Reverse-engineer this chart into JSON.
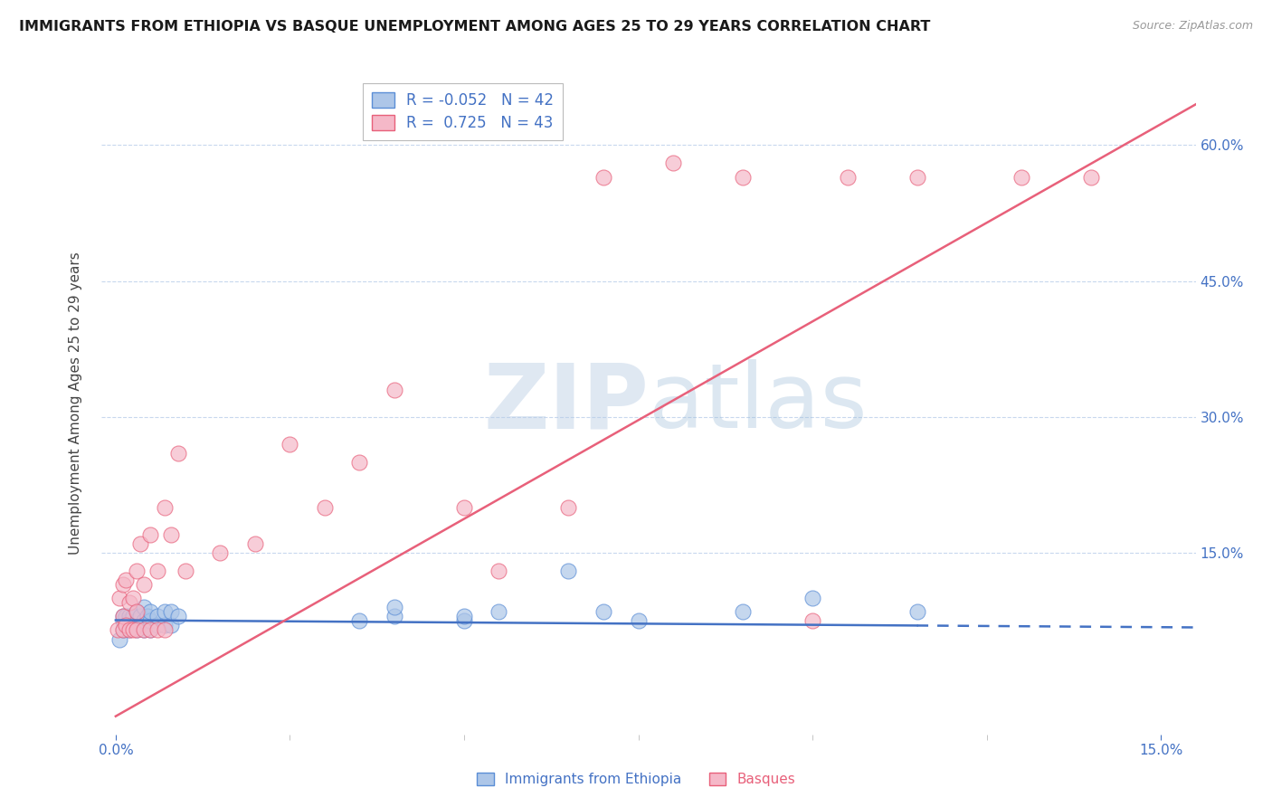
{
  "title": "IMMIGRANTS FROM ETHIOPIA VS BASQUE UNEMPLOYMENT AMONG AGES 25 TO 29 YEARS CORRELATION CHART",
  "source": "Source: ZipAtlas.com",
  "ylabel": "Unemployment Among Ages 25 to 29 years",
  "xlim": [
    -0.002,
    0.155
  ],
  "ylim": [
    -0.05,
    0.68
  ],
  "yticks_right": [
    0.15,
    0.3,
    0.45,
    0.6
  ],
  "ytick_labels_right": [
    "15.0%",
    "30.0%",
    "45.0%",
    "60.0%"
  ],
  "xticks": [
    0.0,
    0.15
  ],
  "xtick_labels": [
    "0.0%",
    "15.0%"
  ],
  "legend_blue_r": "-0.052",
  "legend_blue_n": "42",
  "legend_pink_r": "0.725",
  "legend_pink_n": "43",
  "blue_scatter_color": "#adc6e8",
  "pink_scatter_color": "#f5b8c8",
  "blue_edge_color": "#5b8ed6",
  "pink_edge_color": "#e8607a",
  "blue_line_color": "#4472c4",
  "pink_line_color": "#e8607a",
  "axis_color": "#4472c4",
  "grid_color": "#c8d8ee",
  "watermark_color": "#c8ddf5",
  "blue_x": [
    0.0005,
    0.001,
    0.001,
    0.001,
    0.0015,
    0.0015,
    0.002,
    0.002,
    0.002,
    0.0025,
    0.0025,
    0.003,
    0.003,
    0.003,
    0.0035,
    0.0035,
    0.004,
    0.004,
    0.004,
    0.0045,
    0.005,
    0.005,
    0.005,
    0.006,
    0.006,
    0.007,
    0.007,
    0.008,
    0.008,
    0.009,
    0.035,
    0.04,
    0.04,
    0.05,
    0.05,
    0.055,
    0.065,
    0.07,
    0.075,
    0.09,
    0.1,
    0.115
  ],
  "blue_y": [
    0.055,
    0.065,
    0.075,
    0.08,
    0.07,
    0.08,
    0.065,
    0.075,
    0.08,
    0.07,
    0.08,
    0.065,
    0.075,
    0.085,
    0.07,
    0.08,
    0.065,
    0.075,
    0.09,
    0.08,
    0.065,
    0.075,
    0.085,
    0.07,
    0.08,
    0.07,
    0.085,
    0.07,
    0.085,
    0.08,
    0.075,
    0.08,
    0.09,
    0.075,
    0.08,
    0.085,
    0.13,
    0.085,
    0.075,
    0.085,
    0.1,
    0.085
  ],
  "pink_x": [
    0.0003,
    0.0005,
    0.001,
    0.001,
    0.001,
    0.0015,
    0.0015,
    0.002,
    0.002,
    0.0025,
    0.0025,
    0.003,
    0.003,
    0.003,
    0.0035,
    0.004,
    0.004,
    0.005,
    0.005,
    0.006,
    0.006,
    0.007,
    0.007,
    0.008,
    0.009,
    0.01,
    0.015,
    0.02,
    0.025,
    0.03,
    0.035,
    0.04,
    0.05,
    0.055,
    0.065,
    0.07,
    0.08,
    0.09,
    0.1,
    0.105,
    0.115,
    0.13,
    0.14
  ],
  "pink_y": [
    0.065,
    0.1,
    0.065,
    0.08,
    0.115,
    0.07,
    0.12,
    0.065,
    0.095,
    0.065,
    0.1,
    0.065,
    0.085,
    0.13,
    0.16,
    0.065,
    0.115,
    0.065,
    0.17,
    0.065,
    0.13,
    0.065,
    0.2,
    0.17,
    0.26,
    0.13,
    0.15,
    0.16,
    0.27,
    0.2,
    0.25,
    0.33,
    0.2,
    0.13,
    0.2,
    0.565,
    0.58,
    0.565,
    0.075,
    0.565,
    0.565,
    0.565,
    0.565
  ],
  "blue_trend_x": [
    0.0,
    0.155
  ],
  "blue_trend_y": [
    0.076,
    0.068
  ],
  "pink_trend_x": [
    0.0,
    0.155
  ],
  "pink_trend_y": [
    -0.03,
    0.645
  ]
}
